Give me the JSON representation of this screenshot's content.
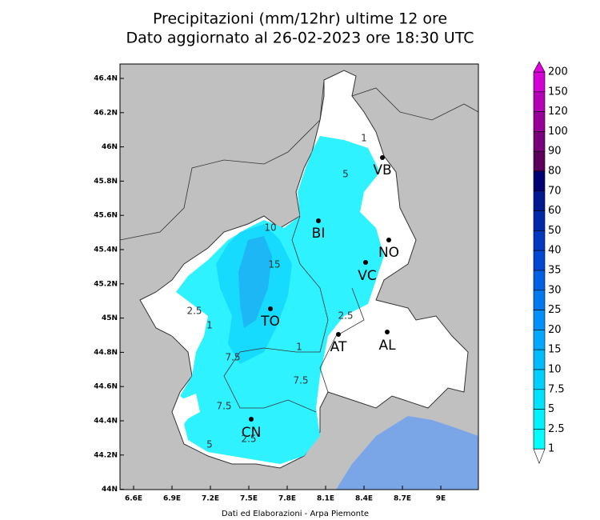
{
  "title": [
    "Precipitazioni (mm/12hr) ultime 12 ore",
    "Dato aggiornato al 26-02-2023 ore 18:30 UTC"
  ],
  "map": {
    "lon_labels": [
      "6.6E",
      "6.9E",
      "7.2E",
      "7.5E",
      "7.8E",
      "8.1E",
      "8.4E",
      "8.7E",
      "9E"
    ],
    "lat_labels": [
      "46.4N",
      "46.2N",
      "46N",
      "45.8N",
      "45.6N",
      "45.4N",
      "45.2N",
      "45N",
      "44.8N",
      "44.6N",
      "44.4N",
      "44.2N",
      "44N"
    ],
    "cities": [
      "VB",
      "BI",
      "NO",
      "VC",
      "TO",
      "AT",
      "AL",
      "CN"
    ],
    "contour_labels": [
      "1",
      "5",
      "10",
      "15",
      "2.5",
      "1",
      "2.5",
      "7.5",
      "1",
      "7.5",
      "7.5",
      "5",
      "2.5"
    ]
  },
  "colorbar": {
    "levels": [
      200,
      150,
      120,
      100,
      90,
      80,
      70,
      60,
      50,
      40,
      35,
      30,
      25,
      20,
      15,
      10,
      7.5,
      5,
      2.5,
      1
    ],
    "colors": [
      "#d200d2",
      "#b400b4",
      "#960096",
      "#780078",
      "#5a005a",
      "#000070",
      "#001890",
      "#0028a8",
      "#0038c0",
      "#0048d4",
      "#0060e4",
      "#0078f0",
      "#0090fa",
      "#00a8ff",
      "#00bcff",
      "#00d0ff",
      "#00e2ff",
      "#00f2ff",
      "#00ffff"
    ],
    "top_color": "#e000e0"
  },
  "footer": "Dati ed Elaborazioni - Arpa Piemonte"
}
